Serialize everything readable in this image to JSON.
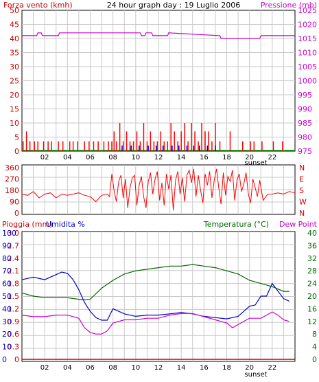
{
  "chart_data": [
    {
      "type": "bar+line",
      "panel": "wind-pressure",
      "title": "24 hour graph day : 19 Luglio 2006",
      "left_label": "Forza vento (kmh)",
      "right_label": "Pressione (mb)",
      "left_axis": {
        "min": 0,
        "max": 50,
        "ticks": [
          "0",
          "5",
          "10",
          "15",
          "20",
          "25",
          "30",
          "35",
          "40",
          "45",
          "50"
        ],
        "color": "#cc0000"
      },
      "right_axis": {
        "min": 975,
        "max": 1025,
        "ticks": [
          "975",
          "980",
          "985",
          "990",
          "995",
          "1000",
          "1005",
          "1010",
          "1015",
          "1020",
          "1025"
        ],
        "color": "#cc00cc"
      },
      "x_ticks": [
        "02",
        "04",
        "06",
        "08",
        "10",
        "12",
        "14",
        "16",
        "18",
        "20",
        "22"
      ],
      "x_note": "sunset",
      "grid": true,
      "series": [
        {
          "kind": "wind-gust",
          "color": "#ff0000",
          "x": [
            0.1,
            0.4,
            0.7,
            1.1,
            1.4,
            1.9,
            2.3,
            2.6,
            3.2,
            3.6,
            4.2,
            4.5,
            4.9,
            5.5,
            5.9,
            6.3,
            6.7,
            7.2,
            7.6,
            7.9,
            8.1,
            8.3,
            8.6,
            8.9,
            9.2,
            9.5,
            9.8,
            10.1,
            10.4,
            10.7,
            11.0,
            11.3,
            11.6,
            11.9,
            12.2,
            12.5,
            12.8,
            13.1,
            13.4,
            13.7,
            14.0,
            14.3,
            14.6,
            14.9,
            15.2,
            15.5,
            15.8,
            16.1,
            16.4,
            16.7,
            17.0,
            17.4,
            18.3,
            19.4,
            20.1,
            20.4,
            21.1,
            22.1,
            22.9
          ],
          "values": [
            3.5,
            7,
            3.5,
            3.5,
            3.5,
            3.5,
            3.5,
            3.5,
            3.5,
            3.5,
            3.5,
            3.5,
            3.5,
            3.5,
            3.5,
            3.5,
            3.5,
            3.5,
            3.5,
            3.5,
            7,
            3.5,
            10,
            3.5,
            7,
            3.5,
            3.5,
            7,
            3.5,
            10,
            3.5,
            7,
            3.5,
            3.5,
            7,
            3.5,
            3.5,
            10,
            7,
            3.5,
            7,
            10,
            3.5,
            10,
            7,
            3.5,
            10,
            7,
            7,
            3.5,
            10,
            3.5,
            7,
            3.5,
            3.5,
            3.5,
            3.5,
            3.5,
            3.5
          ]
        },
        {
          "kind": "wind-average",
          "color": "#0000cc",
          "x": [
            8.8,
            9.6,
            10.3,
            11.1,
            11.8,
            12.4,
            13.2,
            13.8,
            14.5,
            15.1,
            15.6,
            16.3,
            17.0
          ],
          "values": [
            2,
            2,
            2,
            2,
            2,
            2,
            2,
            2,
            2,
            2,
            2,
            2,
            2
          ]
        },
        {
          "kind": "pressure",
          "color": "#cc00cc",
          "x": [
            0,
            1.3,
            1.4,
            1.7,
            1.8,
            3.2,
            3.3,
            3.5,
            3.6,
            10.4,
            10.5,
            10.8,
            10.9,
            11.4,
            11.5,
            12.8,
            12.9,
            17.4,
            17.5,
            20.9,
            21.0,
            24
          ],
          "values": [
            1016,
            1016,
            1017,
            1017,
            1016,
            1016,
            1017,
            1017,
            1017,
            1017,
            1016,
            1016,
            1017,
            1017,
            1016,
            1016,
            1017,
            1016,
            1015,
            1015,
            1016,
            1016
          ]
        }
      ]
    },
    {
      "type": "line",
      "panel": "wind-direction",
      "left_axis": {
        "min": 0,
        "max": 360,
        "ticks": [
          "0",
          "90",
          "180",
          "270",
          "360"
        ],
        "color": "#cc0000"
      },
      "right_axis": {
        "ticks": [
          "N",
          "W",
          "S",
          "E",
          "N"
        ],
        "color": "#cc0000"
      },
      "grid": true,
      "series": [
        {
          "kind": "direction",
          "color": "#ff0000",
          "x": [
            0,
            0.5,
            1.0,
            1.5,
            2.0,
            2.5,
            3.0,
            3.5,
            4.0,
            4.5,
            5.0,
            5.5,
            6.0,
            6.5,
            7.0,
            7.5,
            7.7,
            7.9,
            8.1,
            8.3,
            8.5,
            8.7,
            8.9,
            9.1,
            9.3,
            9.5,
            9.7,
            9.9,
            10.1,
            10.3,
            10.5,
            10.7,
            10.9,
            11.1,
            11.3,
            11.5,
            11.7,
            11.9,
            12.1,
            12.3,
            12.5,
            12.7,
            12.9,
            13.1,
            13.3,
            13.5,
            13.7,
            13.9,
            14.1,
            14.3,
            14.5,
            14.7,
            14.9,
            15.1,
            15.3,
            15.5,
            15.7,
            15.9,
            16.1,
            16.3,
            16.5,
            16.7,
            16.9,
            17.1,
            17.3,
            17.5,
            17.7,
            17.9,
            18.1,
            18.3,
            18.5,
            18.7,
            18.9,
            19.1,
            19.3,
            19.5,
            19.7,
            19.9,
            20.1,
            20.3,
            20.5,
            20.7,
            20.9,
            21.2,
            21.6,
            22.0,
            22.5,
            23.0,
            23.5,
            24
          ],
          "values": [
            150,
            140,
            170,
            120,
            150,
            160,
            120,
            150,
            140,
            150,
            160,
            140,
            130,
            90,
            140,
            150,
            130,
            310,
            180,
            90,
            250,
            300,
            120,
            270,
            40,
            200,
            280,
            300,
            60,
            220,
            290,
            130,
            40,
            250,
            320,
            150,
            270,
            330,
            100,
            240,
            60,
            310,
            190,
            300,
            20,
            260,
            330,
            150,
            280,
            90,
            300,
            340,
            240,
            350,
            130,
            300,
            180,
            80,
            310,
            220,
            330,
            120,
            260,
            350,
            200,
            70,
            320,
            140,
            290,
            250,
            340,
            100,
            260,
            310,
            170,
            230,
            320,
            150,
            80,
            270,
            200,
            130,
            260,
            100,
            150,
            150,
            160,
            150,
            170,
            160
          ]
        }
      ]
    },
    {
      "type": "line",
      "panel": "rain-humidity-temperature",
      "left_label_1": "Pioggia (mm)",
      "left_label_2": "Umidita %",
      "right_label_1": "Temperatura (°C)",
      "right_label_2": "Dew Point",
      "rain_axis": {
        "min": 0,
        "max": 3.0,
        "ticks": [
          "0",
          "0.3",
          "0.6",
          "0.9",
          "1.2",
          "1.5",
          "1.8",
          "2.1",
          "2.4",
          "2.7",
          "3.0"
        ],
        "color": "#cc0000"
      },
      "humidity_axis": {
        "min": 0,
        "max": 100,
        "ticks": [
          "0",
          "10",
          "20",
          "30",
          "40",
          "50",
          "60",
          "70",
          "80",
          "90",
          "100"
        ],
        "color": "#0000cc"
      },
      "temp_axis": {
        "min": 0,
        "max": 40,
        "ticks": [
          "0",
          "4",
          "8",
          "12",
          "16",
          "20",
          "24",
          "28",
          "32",
          "36",
          "40"
        ],
        "color": "#006600"
      },
      "x_ticks": [
        "02",
        "04",
        "06",
        "08",
        "10",
        "12",
        "14",
        "16",
        "18",
        "20",
        "22"
      ],
      "x_note": "sunset",
      "grid": true,
      "series": [
        {
          "name": "Umidita %",
          "color": "#0000cc",
          "x": [
            0,
            1,
            2,
            3,
            3.5,
            4,
            4.5,
            5,
            5.5,
            6,
            6.5,
            7,
            7.5,
            8,
            8.5,
            9,
            10,
            11,
            12,
            13,
            14,
            15,
            16,
            17,
            18,
            19,
            20,
            20.5,
            21,
            21.5,
            22,
            22.5,
            23,
            23.5
          ],
          "values": [
            63,
            65,
            63,
            67,
            69,
            68,
            63,
            55,
            45,
            38,
            33,
            31,
            31,
            40,
            38,
            36,
            34,
            35,
            35,
            36,
            37,
            36,
            34,
            33,
            32,
            34,
            42,
            43,
            50,
            50,
            60,
            54,
            48,
            46
          ]
        },
        {
          "name": "Temperatura (°C)",
          "color": "#006600",
          "x": [
            0,
            1,
            2,
            3,
            4,
            5,
            5.5,
            6,
            7,
            8,
            9,
            10,
            11,
            12,
            13,
            14,
            15,
            16,
            17,
            18,
            19,
            20,
            21,
            22,
            23,
            23.5
          ],
          "values": [
            21,
            20,
            19.5,
            19.5,
            19.5,
            19,
            18.8,
            19,
            22.5,
            25,
            27,
            28,
            28.5,
            29,
            29.5,
            29.5,
            30,
            29.5,
            29,
            28,
            27,
            25,
            24,
            23,
            21.5,
            21.5
          ]
        },
        {
          "name": "Dew Point",
          "color": "#cc00cc",
          "x": [
            0,
            1,
            2,
            3,
            4,
            5,
            5.5,
            6,
            6.5,
            7,
            7.5,
            8,
            9,
            10,
            11,
            12,
            13,
            14,
            15,
            16,
            17,
            17.5,
            18,
            18.5,
            19,
            20,
            21,
            22,
            22.5,
            23,
            23.5
          ],
          "values": [
            14,
            13.5,
            13.5,
            14,
            14,
            13,
            10,
            8.5,
            8,
            8,
            9,
            11.5,
            12.5,
            12.5,
            13,
            13,
            14,
            14.5,
            14.5,
            13.5,
            12.5,
            12,
            11.5,
            10,
            11,
            13,
            13,
            15,
            14,
            12.5,
            12
          ]
        },
        {
          "name": "Pioggia (mm)",
          "color": "#cc0000",
          "x": [
            0,
            24
          ],
          "values": [
            0,
            0
          ]
        }
      ]
    }
  ]
}
